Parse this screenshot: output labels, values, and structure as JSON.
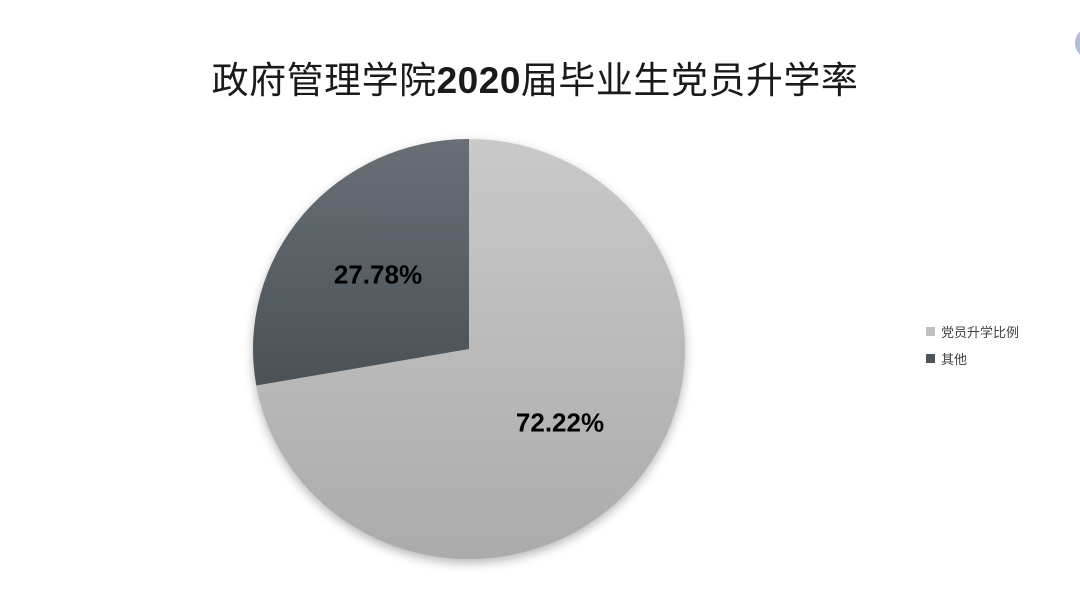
{
  "page": {
    "background": "#FFFFFF"
  },
  "title": {
    "prefix": "政府管理学院",
    "year": "2020",
    "suffix": "届毕业生党员升学率",
    "color": "#1A1A1A"
  },
  "chart_data": {
    "type": "pie",
    "title": "政府管理学院2020届毕业生党员升学率",
    "start_angle_deg": 0,
    "direction": "clockwise",
    "legend_position": "right",
    "categories": [
      "党员升学比例",
      "其他"
    ],
    "values": [
      72.22,
      27.78
    ],
    "slices": [
      {
        "label": "党员升学比例",
        "value": 72.22,
        "display": "72.22%",
        "color": "#BFBFBF",
        "gradient_top": "#C9C9C9",
        "gradient_bottom": "#ABABAB"
      },
      {
        "label": "其他",
        "value": 27.78,
        "display": "27.78%",
        "color": "#4E545C",
        "gradient_top": "#686F76",
        "gradient_bottom": "#4A5157"
      }
    ],
    "data_label_color": "#000000",
    "legend_text_color": "#3F4245"
  },
  "decoration": {
    "partial_widget_color": "#A2ACD2"
  }
}
